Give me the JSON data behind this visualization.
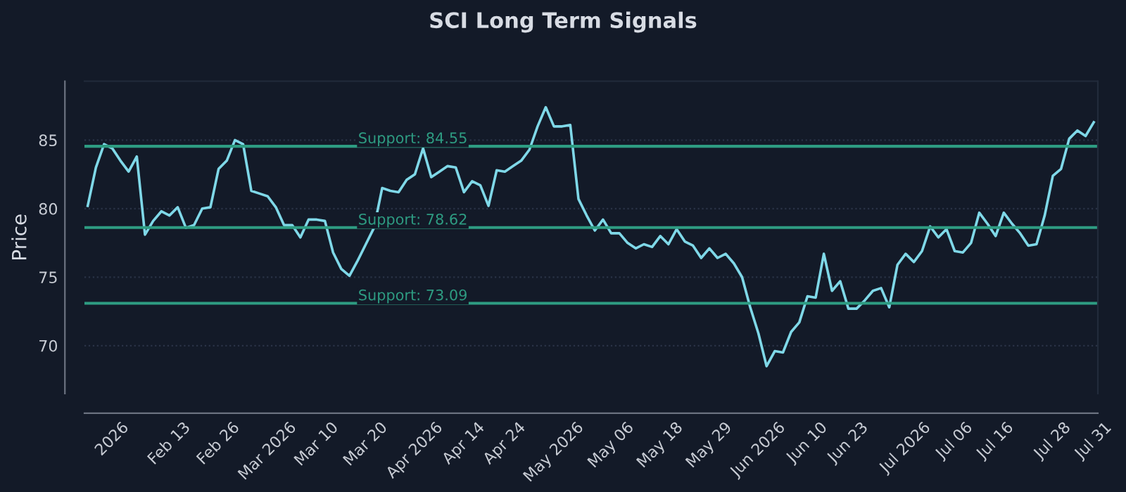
{
  "chart_data": {
    "type": "line",
    "title": "SCI Long Term Signals",
    "ylabel": "Price",
    "categories": [
      null,
      null,
      null,
      "2026",
      null,
      null,
      null,
      null,
      null,
      null,
      "Feb 13",
      null,
      null,
      null,
      null,
      null,
      "Feb 26",
      null,
      null,
      null,
      null,
      null,
      "Mar 2026",
      null,
      null,
      null,
      null,
      null,
      "Mar 10",
      null,
      null,
      null,
      null,
      null,
      "Mar 20",
      null,
      null,
      null,
      null,
      null,
      "Apr 2026",
      null,
      null,
      null,
      null,
      null,
      "Apr 14",
      null,
      null,
      null,
      null,
      "Apr 24",
      null,
      null,
      null,
      null,
      null,
      "May 2026",
      null,
      null,
      null,
      null,
      null,
      null,
      "May 06",
      null,
      null,
      null,
      null,
      null,
      "May 18",
      null,
      null,
      null,
      null,
      null,
      "May 29",
      null,
      null,
      null,
      null,
      null,
      "Jun 2026",
      null,
      null,
      null,
      null,
      null,
      "Jun 10",
      null,
      null,
      null,
      null,
      "Jun 23",
      null,
      null,
      null,
      null,
      null,
      null,
      "Jul 2026",
      null,
      null,
      null,
      null,
      null,
      "Jul 06",
      null,
      null,
      null,
      null,
      "Jul 16",
      null,
      null,
      null,
      null,
      null,
      null,
      "Jul 28",
      null,
      null,
      null,
      null,
      "Jul 31"
    ],
    "series": [
      {
        "color": "#7fd8e8",
        "values": [
          80.2,
          83.0,
          84.7,
          84.4,
          83.5,
          82.7,
          83.8,
          78.1,
          79.1,
          79.8,
          79.5,
          80.1,
          78.6,
          78.8,
          80.0,
          80.1,
          82.9,
          83.5,
          85.0,
          84.7,
          81.3,
          81.1,
          80.9,
          80.1,
          78.8,
          78.8,
          77.9,
          79.2,
          79.2,
          79.1,
          76.8,
          75.6,
          75.1,
          76.2,
          77.4,
          78.6,
          81.5,
          81.3,
          81.2,
          82.1,
          82.5,
          84.4,
          82.3,
          82.7,
          83.1,
          83.0,
          81.2,
          82.0,
          81.7,
          80.2,
          82.8,
          82.7,
          83.1,
          83.5,
          84.3,
          86.0,
          87.4,
          86.0,
          86.0,
          86.1,
          80.7,
          79.5,
          78.4,
          79.2,
          78.2,
          78.2,
          77.5,
          77.1,
          77.4,
          77.2,
          78.0,
          77.4,
          78.5,
          77.6,
          77.3,
          76.4,
          77.1,
          76.4,
          76.7,
          76.0,
          75.0,
          72.8,
          70.9,
          68.5,
          69.6,
          69.5,
          71.0,
          71.7,
          73.6,
          73.5,
          76.7,
          74.0,
          74.7,
          72.7,
          72.7,
          73.3,
          74.0,
          74.2,
          72.8,
          75.9,
          76.7,
          76.1,
          76.9,
          78.7,
          77.9,
          78.5,
          76.9,
          76.8,
          77.5,
          79.7,
          78.9,
          78.0,
          79.7,
          78.9,
          78.2,
          77.3,
          77.4,
          79.5,
          82.4,
          82.9,
          85.1,
          85.7,
          85.3,
          86.3
        ]
      }
    ],
    "ylim": [
      66.5,
      89.3
    ],
    "yticks": [
      70,
      75,
      80,
      85
    ],
    "grid": "y",
    "line_style": "solid",
    "ref_lines": [
      {
        "axis": "y",
        "value": 84.55,
        "label": "Support: 84.55",
        "color": "#2e9c82"
      },
      {
        "axis": "y",
        "value": 78.62,
        "label": "Support: 78.62",
        "color": "#2e9c82"
      },
      {
        "axis": "y",
        "value": 73.09,
        "label": "Support: 73.09",
        "color": "#2e9c82"
      }
    ]
  }
}
